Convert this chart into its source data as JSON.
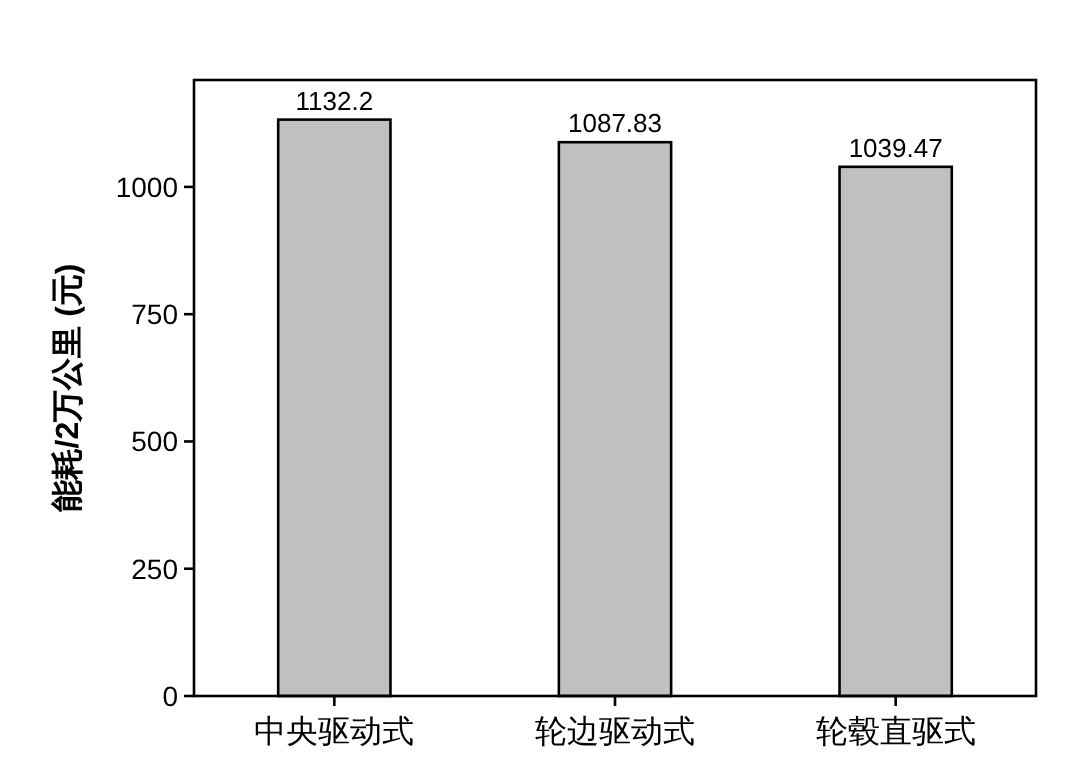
{
  "chart_data": {
    "type": "bar",
    "ylabel": "能耗/2万公里 (元)",
    "categories": [
      "中央驱动式",
      "轮边驱动式",
      "轮毂直驱式"
    ],
    "values": [
      1132.2,
      1087.83,
      1039.47
    ],
    "color": "#c0c0c0",
    "ylim": [
      0,
      1210
    ],
    "yticks": [
      0,
      250,
      500,
      750,
      1000
    ],
    "data_labels": true
  }
}
